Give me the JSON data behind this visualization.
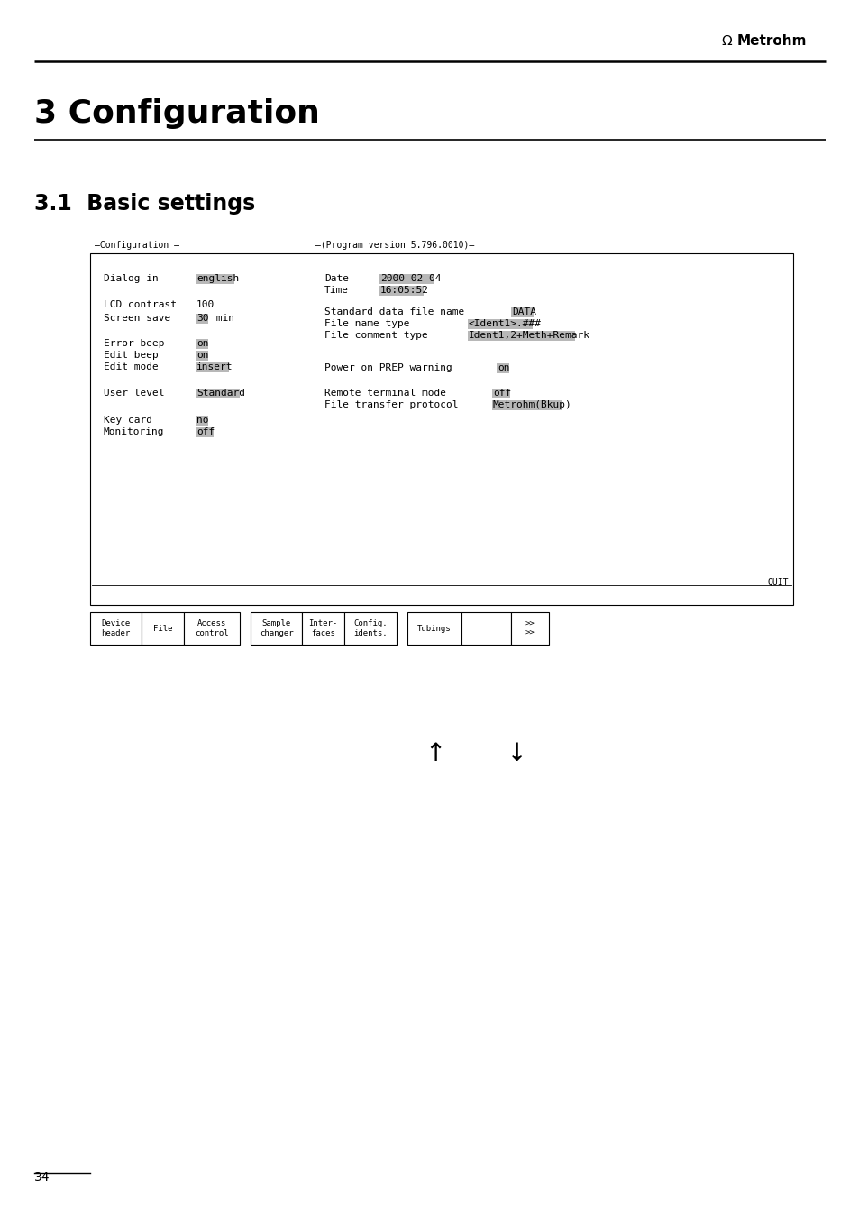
{
  "page_bg": "#ffffff",
  "chapter_title": "3 Configuration",
  "section_title": "3.1  Basic settings",
  "page_number": "34",
  "highlight_color": "#b8b8b8",
  "mono_size": 8.0,
  "screen": {
    "header_left": "Configuration",
    "header_right": "(Program version 5.796.0010)",
    "quit_label": "QUIT",
    "left_fields": [
      {
        "label": "Dialog in",
        "value": "english",
        "hl": true,
        "suffix": ""
      },
      {
        "label": "LCD contrast",
        "value": "100",
        "hl": false,
        "suffix": ""
      },
      {
        "label": "Screen save",
        "value": "30",
        "hl": true,
        "suffix": " min"
      },
      {
        "label": "Error beep",
        "value": "on",
        "hl": true,
        "suffix": ""
      },
      {
        "label": "Edit beep",
        "value": "on",
        "hl": true,
        "suffix": ""
      },
      {
        "label": "Edit mode",
        "value": "insert",
        "hl": true,
        "suffix": ""
      },
      {
        "label": "User level",
        "value": "Standard",
        "hl": true,
        "suffix": ""
      },
      {
        "label": "Key card",
        "value": "no",
        "hl": true,
        "suffix": ""
      },
      {
        "label": "Monitoring",
        "value": "off",
        "hl": true,
        "suffix": ""
      }
    ],
    "right_fields": [
      {
        "label": "Date",
        "value": "2000-02-04",
        "hl": true
      },
      {
        "label": "Time",
        "value": "16:05:52",
        "hl": true
      },
      {
        "label": "Standard data file name",
        "value": "DATA",
        "hl": true
      },
      {
        "label": "File name type",
        "value": "<Ident1>.###",
        "hl": true
      },
      {
        "label": "File comment type",
        "value": "Ident1,2+Meth+Remark",
        "hl": true
      },
      {
        "label": "Power on PREP warning",
        "value": "on",
        "hl": true
      },
      {
        "label": "Remote terminal mode",
        "value": "off",
        "hl": true
      },
      {
        "label": "File transfer protocol",
        "value": "Metrohm(Bkup)",
        "hl": true
      }
    ],
    "buttons": [
      [
        "Device\nheader",
        "File",
        "Access\ncontrol"
      ],
      [
        "Sample\nchanger",
        "Inter-\nfaces",
        "Config.\nidents."
      ],
      [
        "Tubings",
        "",
        ">>\n>>"
      ]
    ]
  }
}
